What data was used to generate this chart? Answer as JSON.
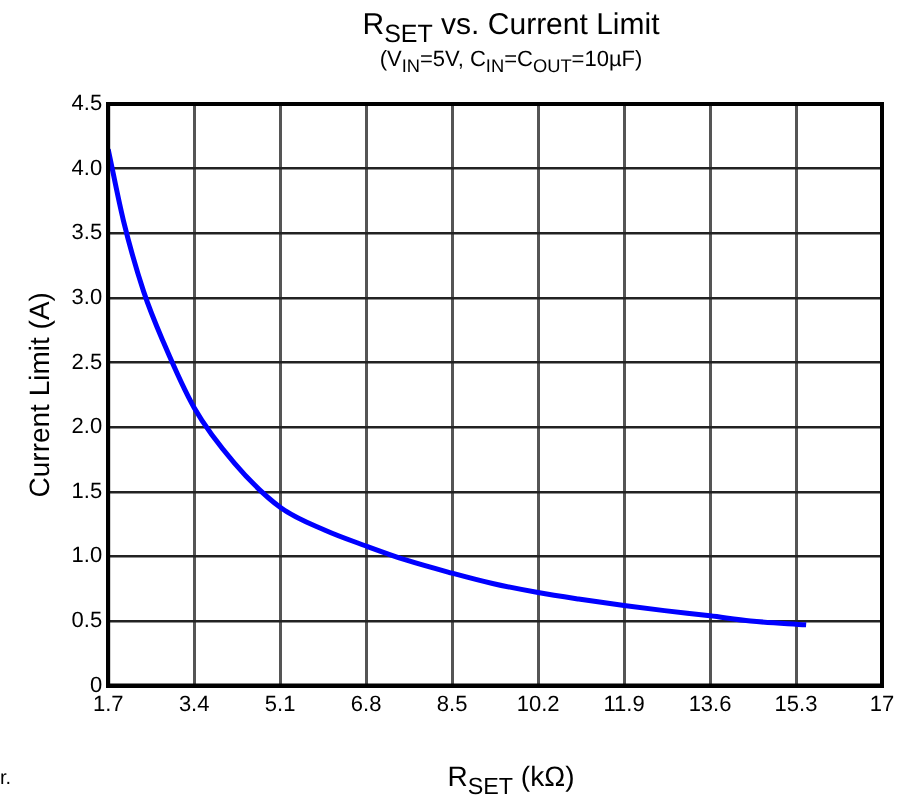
{
  "chart_data": {
    "type": "line",
    "title": "R$_{SET}$ vs. Current Limit",
    "subtitle": "(V$_{IN}$=5V, C$_{IN}$=C$_{OUT}$=10µF)",
    "xlabel": "R$_{SET}$ (kΩ)",
    "ylabel": "Current Limit (A)",
    "annotations": [
      "r."
    ],
    "x": [
      1.7,
      2.0,
      2.4,
      2.8,
      3.4,
      4.2,
      5.1,
      6.0,
      6.8,
      7.6,
      8.5,
      9.3,
      10.2,
      11.0,
      11.9,
      12.7,
      13.6,
      14.4,
      15.5
    ],
    "series": [
      {
        "color": "#0000ff",
        "values": [
          4.15,
          3.6,
          3.05,
          2.65,
          2.15,
          1.72,
          1.38,
          1.2,
          1.08,
          0.97,
          0.87,
          0.79,
          0.72,
          0.67,
          0.62,
          0.58,
          0.54,
          0.5,
          0.47
        ]
      }
    ],
    "xlim": [
      1.7,
      17
    ],
    "xticks": [
      1.7,
      3.4,
      5.1,
      6.8,
      8.5,
      10.2,
      11.9,
      13.6,
      15.3,
      17
    ],
    "ylim": [
      0,
      4.5
    ],
    "yticks": [
      0,
      0.5,
      {
        "value": 1,
        "label": "1.0"
      },
      1.5,
      {
        "value": 2,
        "label": "2.0"
      },
      2.5,
      {
        "value": 3,
        "label": "3.0"
      },
      3.5,
      {
        "value": 4,
        "label": "4.0"
      },
      4.5
    ],
    "grid": true,
    "legend": false,
    "marker": "none",
    "line_style": "solid"
  }
}
